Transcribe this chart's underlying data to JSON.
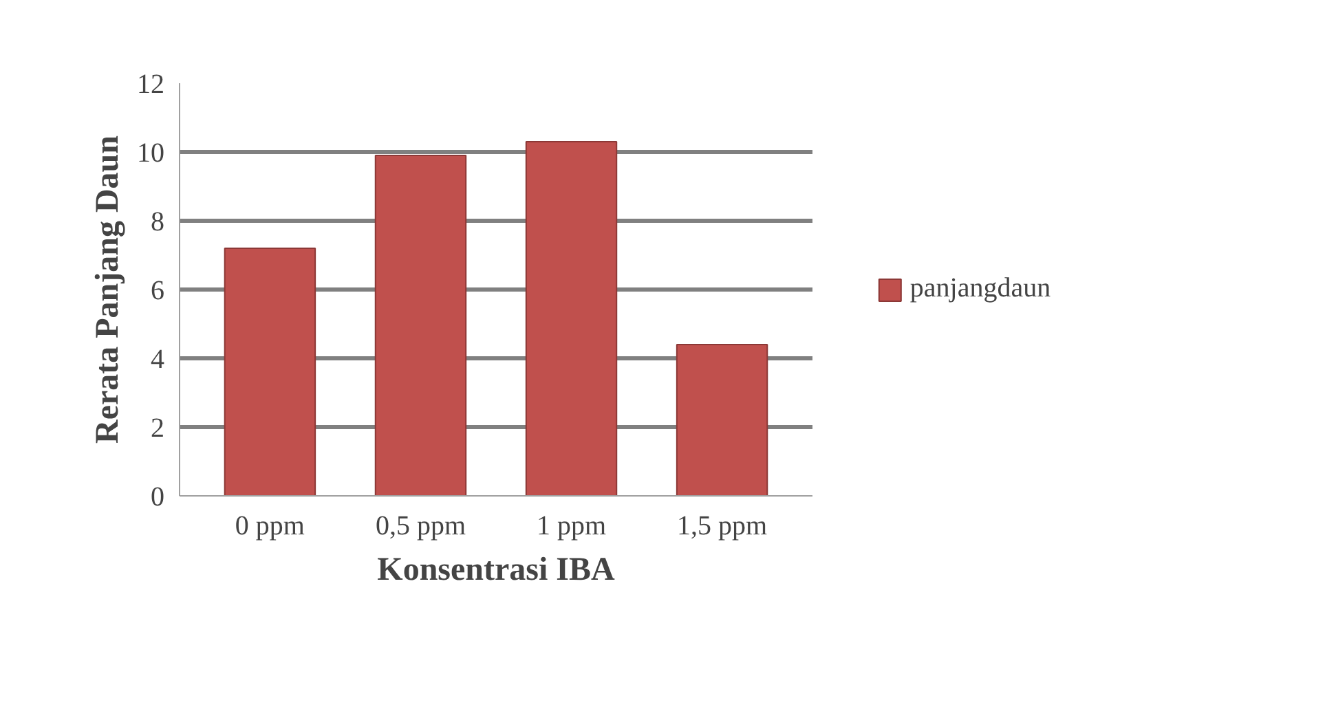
{
  "chart_data": {
    "type": "bar",
    "xlabel": "Konsentrasi IBA",
    "ylabel": "Rerata Panjang Daun",
    "categories": [
      "0 ppm",
      "0,5 ppm",
      "1 ppm",
      "1,5 ppm"
    ],
    "series": [
      {
        "name": "panjangdaun",
        "color": "#c0504d",
        "values": [
          7.2,
          9.9,
          10.3,
          4.4
        ]
      }
    ],
    "ylim": [
      0,
      12
    ],
    "yticks": [
      0,
      2,
      4,
      6,
      8,
      10,
      12
    ],
    "grid": "y",
    "legend": "right"
  }
}
